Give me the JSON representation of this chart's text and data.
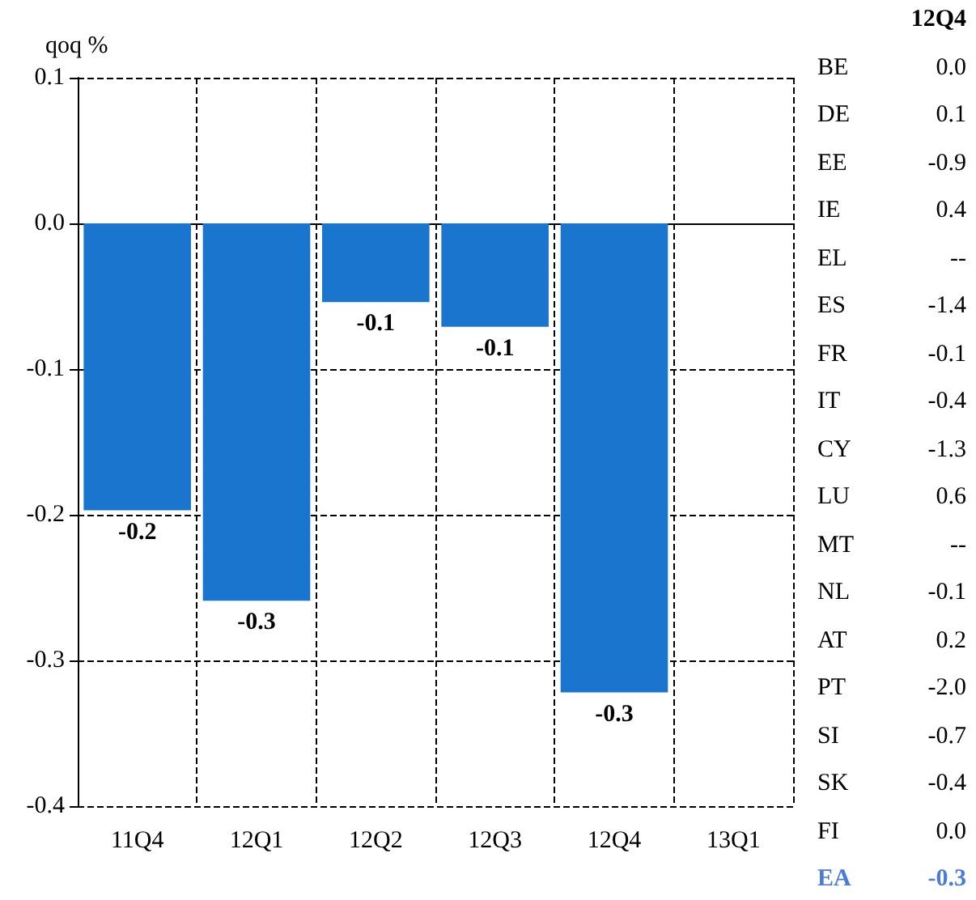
{
  "chart_data": [
    {
      "type": "bar",
      "ylabel": "qoq %",
      "categories": [
        "11Q4",
        "12Q1",
        "12Q2",
        "12Q3",
        "12Q4",
        "13Q1"
      ],
      "series": [
        {
          "color": "#1a75cf",
          "values": [
            -0.197,
            -0.259,
            -0.054,
            -0.071,
            -0.322,
            null
          ],
          "value_labels": [
            "-0.2",
            "-0.3",
            "-0.1",
            "-0.1",
            "-0.3",
            null
          ]
        }
      ],
      "ylim": [
        -0.4,
        0.1
      ],
      "yticks": [
        0.1,
        {
          "value": 0,
          "label": "0.0"
        },
        -0.1,
        -0.2,
        -0.3,
        -0.4
      ],
      "grid": true
    },
    {
      "type": "other",
      "title": "12Q4",
      "categories": [
        "BE",
        "DE",
        "EE",
        "IE",
        "EL",
        "ES",
        "FR",
        "IT",
        "CY",
        "LU",
        "MT",
        "NL",
        "AT",
        "PT",
        "SI",
        "SK",
        "FI",
        "EA"
      ],
      "value_labels": [
        "0.0",
        "0.1",
        "-0.9",
        "0.4",
        "--",
        "-1.4",
        "-0.1",
        "-0.4",
        "-1.3",
        "0.6",
        "--",
        "-0.1",
        "0.2",
        "-2.0",
        "-0.7",
        "-0.4",
        "0.0",
        "-0.3"
      ],
      "colors": [
        "#000000",
        "#000000",
        "#000000",
        "#000000",
        "#000000",
        "#000000",
        "#000000",
        "#000000",
        "#000000",
        "#000000",
        "#000000",
        "#000000",
        "#000000",
        "#000000",
        "#000000",
        "#000000",
        "#000000",
        "#4a7bd8"
      ]
    }
  ]
}
